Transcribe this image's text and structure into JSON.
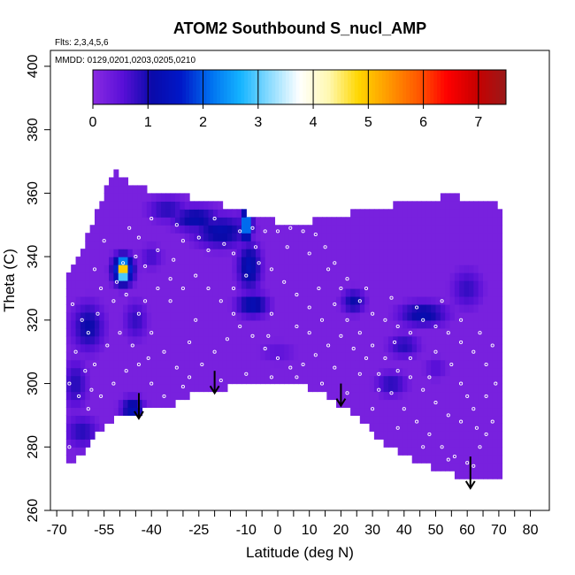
{
  "chart_data": {
    "type": "heatmap",
    "title": "ATOM2 Southbound S_nucl_AMP",
    "subtitle_flts": "Flts: 2,3,4,5,6",
    "subtitle_mmdd": "MMDD: 0129,0201,0203,0205,0210",
    "xlabel": "Latitude (deg N)",
    "ylabel": "Theta (C)",
    "xlim": [
      -72,
      86
    ],
    "ylim": [
      260,
      405
    ],
    "x_ticks": [
      -70,
      -55,
      -40,
      -25,
      -10,
      0,
      10,
      20,
      30,
      40,
      50,
      60,
      70,
      80
    ],
    "x_tick_labels": [
      "-70",
      "-55",
      "-40",
      "-25",
      "-10",
      "0",
      "10",
      "20",
      "30",
      "40",
      "50",
      "60",
      "70",
      "80"
    ],
    "y_ticks": [
      260,
      280,
      300,
      320,
      340,
      360,
      380,
      400
    ],
    "y_tick_labels": [
      "260",
      "280",
      "300",
      "320",
      "340",
      "360",
      "380",
      "400"
    ],
    "colorbar": {
      "range": [
        0,
        7.5
      ],
      "ticks": [
        0,
        1,
        2,
        3,
        4,
        5,
        6,
        7
      ],
      "tick_labels": [
        "0",
        "1",
        "2",
        "3",
        "4",
        "5",
        "6",
        "7"
      ],
      "colors": [
        "#8a2be2",
        "#5a10d8",
        "#0a0aaa",
        "#0018c8",
        "#0070f0",
        "#14b4ff",
        "#8cdcff",
        "#ffffff",
        "#fff8b0",
        "#ffd700",
        "#ff9a00",
        "#ff5a00",
        "#ff0000",
        "#c80000",
        "#9a1a1a"
      ]
    },
    "background_value": 0.2,
    "lower_boundary": [
      [
        -67,
        274
      ],
      [
        -62,
        278
      ],
      [
        -54,
        288
      ],
      [
        -46,
        291
      ],
      [
        -36,
        292
      ],
      [
        -26,
        297
      ],
      [
        -14,
        299
      ],
      [
        -8,
        301
      ],
      [
        0,
        299
      ],
      [
        8,
        299
      ],
      [
        14,
        298
      ],
      [
        20,
        293
      ],
      [
        28,
        287
      ],
      [
        34,
        281
      ],
      [
        44,
        275
      ],
      [
        54,
        272
      ],
      [
        61,
        270
      ],
      [
        70,
        269
      ]
    ],
    "upper_boundary": [
      [
        -67,
        333
      ],
      [
        -62,
        341
      ],
      [
        -58,
        353
      ],
      [
        -54,
        362
      ],
      [
        -52,
        367
      ],
      [
        -46,
        362
      ],
      [
        -36,
        360
      ],
      [
        -24,
        358
      ],
      [
        -14,
        355
      ],
      [
        -6,
        352
      ],
      [
        0,
        351
      ],
      [
        10,
        351
      ],
      [
        24,
        354
      ],
      [
        40,
        357
      ],
      [
        54,
        359
      ],
      [
        68,
        358
      ],
      [
        70,
        354
      ]
    ],
    "x_data_range": [
      -67,
      70
    ],
    "features": [
      {
        "x": -49,
        "y": 336,
        "value": 6.0,
        "sx": 1.2,
        "sy": 2.2
      },
      {
        "x": -49,
        "y": 336,
        "value": 2.5,
        "sx": 2.5,
        "sy": 3.5
      },
      {
        "x": -10,
        "y": 350,
        "value": 2.6,
        "sx": 1.4,
        "sy": 3.5
      },
      {
        "x": -18,
        "y": 348,
        "value": 1.2,
        "sx": 7,
        "sy": 4
      },
      {
        "x": -26,
        "y": 352,
        "value": 1.2,
        "sx": 6,
        "sy": 3
      },
      {
        "x": -9,
        "y": 337,
        "value": 1.3,
        "sx": 3,
        "sy": 6
      },
      {
        "x": -8,
        "y": 325,
        "value": 1.3,
        "sx": 4,
        "sy": 3
      },
      {
        "x": -35,
        "y": 355,
        "value": 0.9,
        "sx": 5,
        "sy": 3
      },
      {
        "x": -60,
        "y": 318,
        "value": 1.1,
        "sx": 4,
        "sy": 6
      },
      {
        "x": -64,
        "y": 300,
        "value": 0.9,
        "sx": 3,
        "sy": 6
      },
      {
        "x": -46,
        "y": 292,
        "value": 1.3,
        "sx": 3,
        "sy": 3
      },
      {
        "x": -62,
        "y": 285,
        "value": 0.9,
        "sx": 4,
        "sy": 4
      },
      {
        "x": -45,
        "y": 320,
        "value": 0.8,
        "sx": 3,
        "sy": 5
      },
      {
        "x": -40,
        "y": 340,
        "value": 0.7,
        "sx": 3,
        "sy": 3
      },
      {
        "x": 24,
        "y": 326,
        "value": 1.1,
        "sx": 3,
        "sy": 3
      },
      {
        "x": 46,
        "y": 322,
        "value": 1.2,
        "sx": 6,
        "sy": 3
      },
      {
        "x": 40,
        "y": 312,
        "value": 0.9,
        "sx": 4,
        "sy": 3
      },
      {
        "x": 36,
        "y": 300,
        "value": 0.9,
        "sx": 4,
        "sy": 3
      },
      {
        "x": 60,
        "y": 330,
        "value": 0.8,
        "sx": 4,
        "sy": 5
      },
      {
        "x": 50,
        "y": 305,
        "value": 0.6,
        "sx": 3,
        "sy": 3
      },
      {
        "x": 0,
        "y": 310,
        "value": 0.5,
        "sx": 5,
        "sy": 3
      }
    ],
    "arrows": [
      {
        "x": -44,
        "y_top": 297,
        "y_bottom": 289
      },
      {
        "x": -20,
        "y_top": 304,
        "y_bottom": 297
      },
      {
        "x": 20,
        "y_top": 300,
        "y_bottom": 293
      },
      {
        "x": 61,
        "y_top": 277,
        "y_bottom": 267
      }
    ],
    "sample_points": [
      [
        -58,
        336
      ],
      [
        -51,
        332
      ],
      [
        -49,
        338
      ],
      [
        -45,
        340
      ],
      [
        -42,
        337
      ],
      [
        -38,
        342
      ],
      [
        -33,
        339
      ],
      [
        -30,
        345
      ],
      [
        -25,
        346
      ],
      [
        -22,
        342
      ],
      [
        -17,
        344
      ],
      [
        -12,
        348
      ],
      [
        -8,
        349
      ],
      [
        -4,
        348
      ],
      [
        0,
        348
      ],
      [
        4,
        349
      ],
      [
        8,
        348
      ],
      [
        12,
        347
      ],
      [
        15,
        343
      ],
      [
        18,
        338
      ],
      [
        22,
        333
      ],
      [
        26,
        326
      ],
      [
        30,
        322
      ],
      [
        34,
        320
      ],
      [
        38,
        318
      ],
      [
        42,
        316
      ],
      [
        46,
        320
      ],
      [
        50,
        318
      ],
      [
        54,
        316
      ],
      [
        58,
        313
      ],
      [
        62,
        310
      ],
      [
        66,
        306
      ],
      [
        -65,
        325
      ],
      [
        -62,
        320
      ],
      [
        -60,
        316
      ],
      [
        -57,
        322
      ],
      [
        -52,
        326
      ],
      [
        -48,
        328
      ],
      [
        -44,
        322
      ],
      [
        -40,
        316
      ],
      [
        -36,
        310
      ],
      [
        -32,
        305
      ],
      [
        -28,
        302
      ],
      [
        -24,
        306
      ],
      [
        -20,
        310
      ],
      [
        -16,
        314
      ],
      [
        -12,
        318
      ],
      [
        -8,
        315
      ],
      [
        -4,
        311
      ],
      [
        0,
        308
      ],
      [
        4,
        305
      ],
      [
        8,
        306
      ],
      [
        12,
        309
      ],
      [
        16,
        312
      ],
      [
        20,
        315
      ],
      [
        24,
        311
      ],
      [
        28,
        308
      ],
      [
        32,
        303
      ],
      [
        36,
        297
      ],
      [
        40,
        292
      ],
      [
        44,
        288
      ],
      [
        48,
        284
      ],
      [
        52,
        280
      ],
      [
        56,
        277
      ],
      [
        60,
        275
      ],
      [
        64,
        280
      ],
      [
        68,
        288
      ],
      [
        -66,
        300
      ],
      [
        -63,
        296
      ],
      [
        -60,
        292
      ],
      [
        -56,
        296
      ],
      [
        -52,
        300
      ],
      [
        -48,
        304
      ],
      [
        -44,
        306
      ],
      [
        -40,
        300
      ],
      [
        -36,
        296
      ],
      [
        -30,
        299
      ],
      [
        -18,
        301
      ],
      [
        -10,
        303
      ],
      [
        -2,
        302
      ],
      [
        6,
        302
      ],
      [
        14,
        300
      ],
      [
        22,
        297
      ],
      [
        30,
        292
      ],
      [
        38,
        286
      ],
      [
        46,
        280
      ],
      [
        54,
        276
      ],
      [
        62,
        274
      ],
      [
        -64,
        310
      ],
      [
        -58,
        306
      ],
      [
        -54,
        312
      ],
      [
        -50,
        316
      ],
      [
        -46,
        312
      ],
      [
        -42,
        326
      ],
      [
        -38,
        330
      ],
      [
        -34,
        326
      ],
      [
        -30,
        330
      ],
      [
        -26,
        334
      ],
      [
        -22,
        330
      ],
      [
        -18,
        326
      ],
      [
        -14,
        330
      ],
      [
        -10,
        334
      ],
      [
        -6,
        338
      ],
      [
        -2,
        336
      ],
      [
        2,
        332
      ],
      [
        6,
        328
      ],
      [
        10,
        324
      ],
      [
        14,
        320
      ],
      [
        18,
        325
      ],
      [
        22,
        320
      ],
      [
        26,
        316
      ],
      [
        30,
        312
      ],
      [
        34,
        308
      ],
      [
        38,
        304
      ],
      [
        42,
        302
      ],
      [
        46,
        298
      ],
      [
        50,
        294
      ],
      [
        54,
        290
      ],
      [
        58,
        288
      ],
      [
        62,
        292
      ],
      [
        66,
        296
      ],
      [
        -55,
        345
      ],
      [
        -47,
        349
      ],
      [
        -40,
        352
      ],
      [
        -32,
        350
      ],
      [
        -20,
        352
      ],
      [
        -14,
        341
      ],
      [
        -7,
        343
      ],
      [
        3,
        343
      ],
      [
        10,
        341
      ],
      [
        16,
        336
      ],
      [
        20,
        330
      ],
      [
        28,
        330
      ],
      [
        36,
        327
      ],
      [
        44,
        324
      ],
      [
        52,
        326
      ],
      [
        58,
        320
      ],
      [
        64,
        316
      ],
      [
        68,
        312
      ],
      [
        -68,
        286
      ],
      [
        -66,
        280
      ],
      [
        -61,
        304
      ],
      [
        -56,
        330
      ],
      [
        -44,
        346
      ],
      [
        -34,
        333
      ],
      [
        -26,
        320
      ],
      [
        -14,
        322
      ],
      [
        -2,
        322
      ],
      [
        10,
        316
      ],
      [
        26,
        303
      ],
      [
        42,
        308
      ],
      [
        50,
        310
      ],
      [
        58,
        300
      ],
      [
        66,
        284
      ],
      [
        -53,
        284
      ],
      [
        -41,
        308
      ],
      [
        -28,
        313
      ],
      [
        6,
        318
      ],
      [
        18,
        305
      ],
      [
        32,
        298
      ],
      [
        48,
        302
      ],
      [
        60,
        296
      ],
      [
        69,
        300
      ],
      [
        -59,
        298
      ],
      [
        -3,
        315
      ],
      [
        13,
        330
      ],
      [
        37,
        313
      ],
      [
        55,
        306
      ],
      [
        63,
        286
      ]
    ]
  }
}
